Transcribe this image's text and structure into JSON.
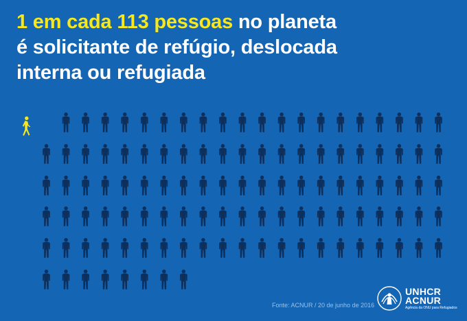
{
  "headline": {
    "part1_highlight": "1 em cada 113 pessoas",
    "part1_rest": " no planeta",
    "line2": "é solicitante de refúgio, deslocada",
    "line3": "interna ou refugiada"
  },
  "figures": {
    "highlight_count": 1,
    "highlight_color": "#f6e71e",
    "person_count": 113,
    "person_color": "#0d2f5c",
    "background_color": "#1565b5"
  },
  "footer": {
    "source": "Fonte: ACNUR / 20 de junho de 2016",
    "logo_line1": "UNHCR",
    "logo_line2": "ACNUR",
    "logo_tagline": "Agência da ONU para Refugiados"
  },
  "icons": [
    "walking-person-icon",
    "person-icon",
    "unhcr-emblem-icon"
  ]
}
